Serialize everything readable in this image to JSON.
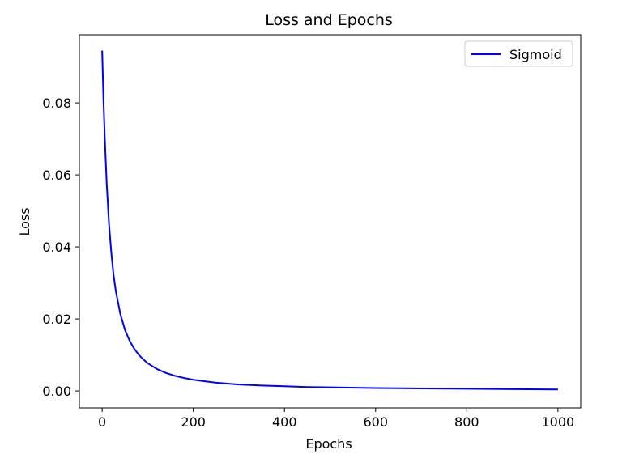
{
  "chart_data": {
    "type": "line",
    "title": "Loss and Epochs",
    "xlabel": "Epochs",
    "ylabel": "Loss",
    "xlim": [
      -50,
      1050
    ],
    "ylim": [
      -0.0047,
      0.0989
    ],
    "grid": false,
    "legend_position": "top-right",
    "x_ticks": [
      0,
      200,
      400,
      600,
      800,
      1000
    ],
    "x_tick_labels": [
      "0",
      "200",
      "400",
      "600",
      "800",
      "1000"
    ],
    "y_ticks": [
      0.0,
      0.02,
      0.04,
      0.06,
      0.08
    ],
    "y_tick_labels": [
      "0.00",
      "0.02",
      "0.04",
      "0.06",
      "0.08"
    ],
    "series": [
      {
        "name": "Sigmoid",
        "color": "#0000ff",
        "x": [
          0,
          3,
          6,
          10,
          15,
          20,
          25,
          30,
          40,
          50,
          60,
          70,
          80,
          90,
          100,
          120,
          140,
          160,
          180,
          200,
          250,
          300,
          350,
          400,
          450,
          500,
          600,
          700,
          800,
          900,
          1000
        ],
        "y": [
          0.0945,
          0.0805,
          0.0695,
          0.0575,
          0.0465,
          0.0385,
          0.0322,
          0.0277,
          0.0213,
          0.017,
          0.014,
          0.0118,
          0.0101,
          0.0088,
          0.0077,
          0.0061,
          0.005,
          0.0042,
          0.0036,
          0.0031,
          0.0023,
          0.0018,
          0.0015,
          0.0013,
          0.0011,
          0.001,
          0.0008,
          0.0007,
          0.0006,
          0.0005,
          0.0004
        ]
      }
    ]
  }
}
